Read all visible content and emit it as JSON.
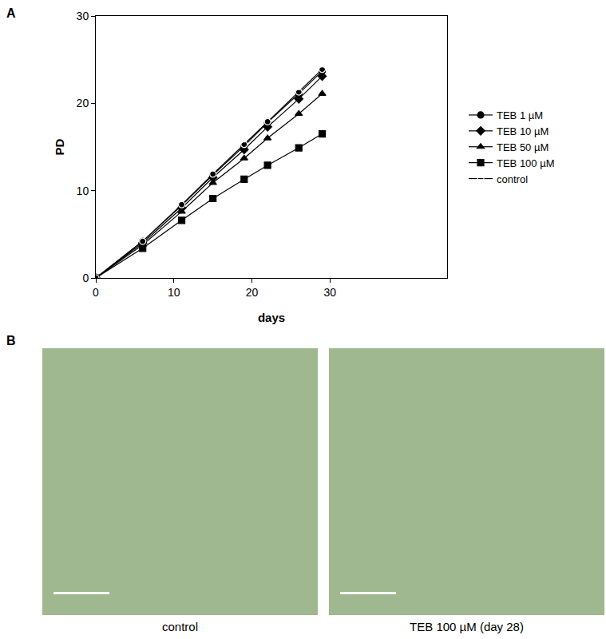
{
  "chart_data": {
    "type": "line",
    "panel": "A",
    "x_label": "days",
    "y_label": "PD",
    "xlim": [
      0,
      45
    ],
    "xticks": [
      0,
      10,
      20,
      30
    ],
    "ylim": [
      0,
      30
    ],
    "yticks": [
      0,
      10,
      20,
      30
    ],
    "grid": false,
    "legend": "right",
    "x": [
      0,
      6,
      11,
      15,
      19,
      22,
      26,
      29
    ],
    "series": [
      {
        "name": "TEB 1 µM",
        "color": "#000000",
        "marker": "circle",
        "values": [
          0,
          4.2,
          8.3,
          11.8,
          15.1,
          17.8,
          21.1,
          23.7
        ]
      },
      {
        "name": "TEB 10 µM",
        "color": "#000000",
        "marker": "diamond",
        "values": [
          0,
          4.0,
          8.0,
          11.5,
          14.7,
          17.3,
          20.5,
          23.1
        ]
      },
      {
        "name": "TEB 50 µM",
        "color": "#000000",
        "marker": "triangle-up",
        "values": [
          0,
          3.8,
          7.6,
          10.9,
          13.7,
          16.0,
          18.8,
          21.1
        ]
      },
      {
        "name": "TEB 100 µM",
        "color": "#000000",
        "marker": "square",
        "values": [
          0,
          3.4,
          6.6,
          9.1,
          11.3,
          12.9,
          14.9,
          16.5
        ]
      },
      {
        "name": "control",
        "color": "#000000",
        "marker": "circle-open",
        "values": [
          0,
          4.2,
          8.4,
          11.9,
          15.3,
          17.9,
          21.3,
          23.9
        ]
      }
    ]
  },
  "figure_b": {
    "panel": "B",
    "images": [
      {
        "caption": "control"
      },
      {
        "caption": "TEB 100 µM (day 28)"
      }
    ]
  }
}
